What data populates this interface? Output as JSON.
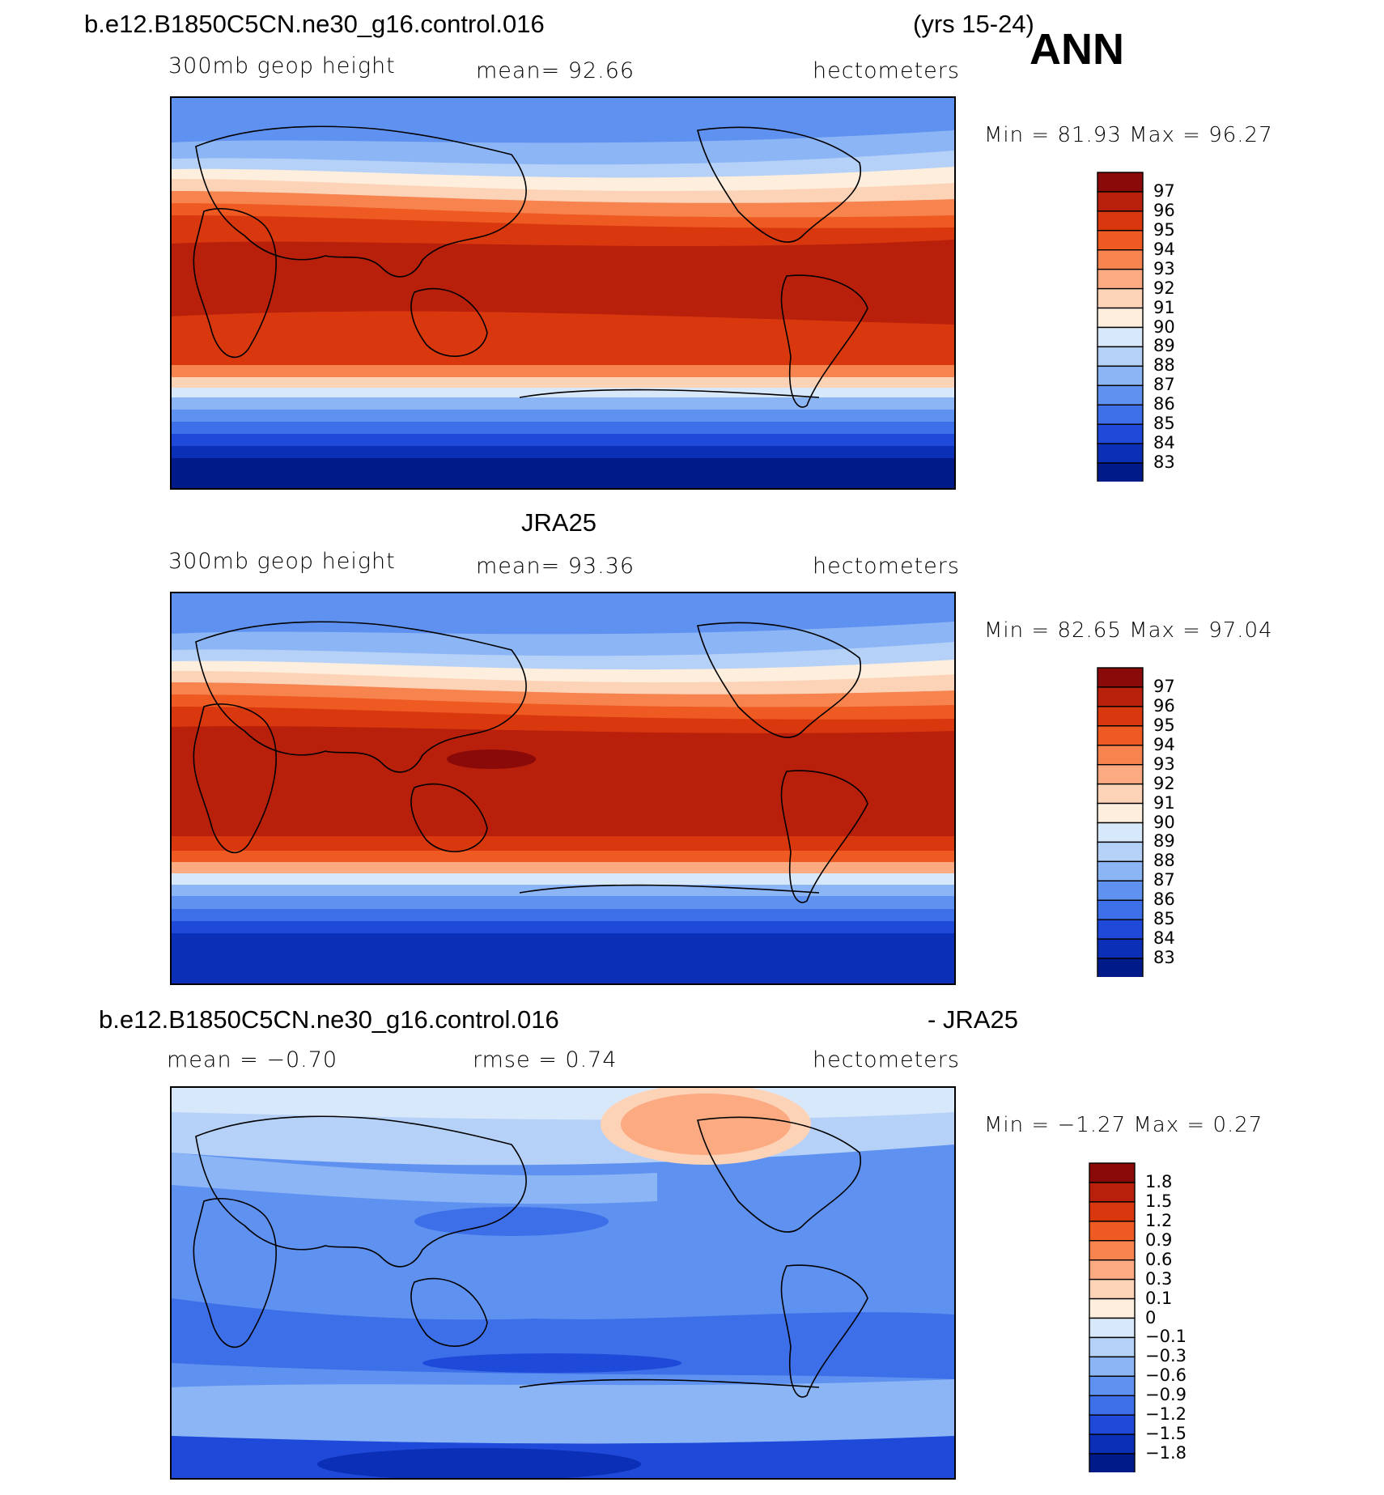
{
  "header": {
    "case_name": "b.e12.B1850C5CN.ne30_g16.control.016",
    "years": "(yrs 15-24)",
    "season": "ANN"
  },
  "panels": [
    {
      "id": "model",
      "title": "",
      "variable": "300mb geop height",
      "stat": "mean=  92.66",
      "units": "hectometers",
      "minmax": "Min =  81.93 Max =  96.27",
      "levels": [
        "97",
        "96",
        "95",
        "94",
        "93",
        "92",
        "91",
        "90",
        "89",
        "88",
        "87",
        "86",
        "85",
        "84",
        "83"
      ]
    },
    {
      "id": "obs",
      "title": "JRA25",
      "variable": "300mb geop height",
      "stat": "mean=  93.36",
      "units": "hectometers",
      "minmax": "Min =  82.65 Max =  97.04",
      "levels": [
        "97",
        "96",
        "95",
        "94",
        "93",
        "92",
        "91",
        "90",
        "89",
        "88",
        "87",
        "86",
        "85",
        "84",
        "83"
      ]
    },
    {
      "id": "diff",
      "title_left": "b.e12.B1850C5CN.ne30_g16.control.016",
      "title_right": "- JRA25",
      "stat_mean": "mean =  −0.70",
      "stat_rmse": "rmse =   0.74",
      "units": "hectometers",
      "minmax": "Min =  −1.27 Max =   0.27",
      "levels": [
        "1.8",
        "1.5",
        "1.2",
        "0.9",
        "0.6",
        "0.3",
        "0.1",
        "0",
        "−0.1",
        "−0.3",
        "−0.6",
        "−0.9",
        "−1.2",
        "−1.5",
        "−1.8"
      ]
    }
  ],
  "colors": {
    "scale": [
      "#8a0a0a",
      "#b8200c",
      "#d9380f",
      "#ee5a22",
      "#f7834e",
      "#fbaa82",
      "#fdd3b8",
      "#fdeedd",
      "#d8e8fb",
      "#b5d1f8",
      "#8cb5f5",
      "#5f92f0",
      "#3d6fe8",
      "#1f4ad9",
      "#0b2fb6",
      "#001a8a"
    ]
  }
}
